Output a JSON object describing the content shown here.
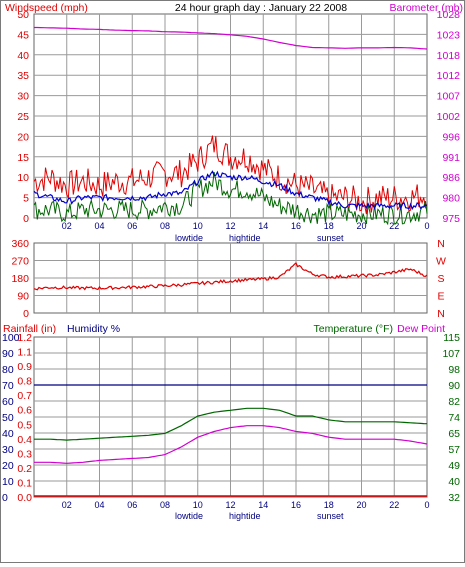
{
  "colors": {
    "wind": "#e00000",
    "gust": "#e00000",
    "wind_avg": "#0000cc",
    "wind_dir": "#e00000",
    "baro": "#d000d0",
    "rain": "#e00000",
    "humidity": "#000080",
    "temperature": "#006600",
    "dewpoint": "#d000d0",
    "grid": "#9a9a9a",
    "hour_tick_text": "#000080"
  },
  "chart_data": [
    {
      "type": "line",
      "title": "24 hour graph day : January 22 2008",
      "left_axis_label": "Windspeed (mph)",
      "right_axis_label": "Barometer (mb)",
      "left_ticks": [
        "50",
        "45",
        "40",
        "35",
        "30",
        "25",
        "20",
        "15",
        "10",
        "5",
        "0"
      ],
      "right_ticks": [
        "1028",
        "1023",
        "1018",
        "1012",
        "1007",
        "1002",
        "996",
        "991",
        "986",
        "980",
        "975"
      ],
      "ylim_left": [
        0,
        50
      ],
      "ylim_right": [
        975,
        1028
      ],
      "x_ticks": [
        "02",
        "04",
        "06",
        "08",
        "10",
        "12",
        "14",
        "16",
        "18",
        "20",
        "22",
        "0"
      ],
      "x_annotations": [
        "lowtide",
        "hightide",
        "sunset"
      ],
      "grid": true,
      "series": [
        {
          "name": "Barometer (mb)",
          "axis": "right",
          "x": [
            0,
            1,
            2,
            3,
            4,
            5,
            6,
            7,
            8,
            9,
            10,
            11,
            12,
            13,
            14,
            15,
            16,
            17,
            18,
            19,
            20,
            21,
            22,
            23,
            24
          ],
          "values": [
            1024.5,
            1024.4,
            1024.3,
            1024.1,
            1024.0,
            1023.8,
            1023.7,
            1023.6,
            1023.4,
            1023.3,
            1023.1,
            1022.9,
            1022.6,
            1022.2,
            1021.5,
            1020.6,
            1019.8,
            1019.3,
            1019.2,
            1019.1,
            1019.2,
            1019.2,
            1019.3,
            1019.2,
            1018.9
          ]
        },
        {
          "name": "Windspeed (mph)",
          "axis": "left",
          "style": "gust",
          "x": [
            0,
            1,
            2,
            3,
            4,
            5,
            6,
            7,
            8,
            9,
            10,
            11,
            12,
            13,
            14,
            15,
            16,
            17,
            18,
            19,
            20,
            21,
            22,
            23,
            24
          ],
          "values": [
            9,
            10,
            8,
            9,
            8,
            9,
            9,
            10,
            11,
            11,
            14,
            18,
            15,
            15,
            12,
            10,
            8,
            7,
            5,
            5,
            4,
            5,
            5,
            5,
            6
          ]
        },
        {
          "name": "Average (mph)",
          "axis": "left",
          "style": "avg",
          "x": [
            0,
            1,
            2,
            3,
            4,
            5,
            6,
            7,
            8,
            9,
            10,
            11,
            12,
            13,
            14,
            15,
            16,
            17,
            18,
            19,
            20,
            21,
            22,
            23,
            24
          ],
          "values": [
            6,
            5,
            4,
            5,
            5,
            5,
            5,
            5,
            6,
            6,
            9,
            11,
            10,
            10,
            9,
            8,
            6,
            5,
            4,
            3,
            3,
            3,
            3,
            3,
            3
          ]
        },
        {
          "name": "Low (mph)",
          "axis": "left",
          "style": "low",
          "x": [
            0,
            1,
            2,
            3,
            4,
            5,
            6,
            7,
            8,
            9,
            10,
            11,
            12,
            13,
            14,
            15,
            16,
            17,
            18,
            19,
            20,
            21,
            22,
            23,
            24
          ],
          "values": [
            2,
            2,
            1,
            2,
            2,
            2,
            2,
            2,
            3,
            3,
            7,
            9,
            7,
            7,
            5,
            3,
            2,
            1,
            1,
            1,
            1,
            1,
            1,
            1,
            2
          ]
        }
      ]
    },
    {
      "type": "scatter",
      "left_ticks": [
        "360",
        "270",
        "180",
        "90",
        "0"
      ],
      "right_ticks": [
        "N",
        "W",
        "S",
        "E",
        "N"
      ],
      "ylim": [
        0,
        360
      ],
      "grid": true,
      "series": [
        {
          "name": "Wind direction",
          "x": [
            0,
            1,
            2,
            3,
            4,
            5,
            6,
            7,
            8,
            9,
            10,
            11,
            12,
            13,
            14,
            15,
            16,
            17,
            18,
            19,
            20,
            21,
            22,
            23,
            24
          ],
          "values": [
            125,
            132,
            130,
            128,
            128,
            130,
            133,
            136,
            140,
            145,
            152,
            158,
            165,
            170,
            175,
            185,
            250,
            200,
            185,
            188,
            192,
            196,
            210,
            225,
            190
          ]
        }
      ]
    },
    {
      "type": "line",
      "left_axis_label": "Rainfall (in)",
      "left_axis_label_2": "Humidity %",
      "right_axis_label": "Temperature (°F)",
      "right_axis_label_2": "Dew Point",
      "rain_ticks": [
        "1.2",
        "1.1",
        "0.9",
        "0.8",
        "0.7",
        "0.6",
        "0.5",
        "0.4",
        "0.3",
        "0.2",
        "0.1",
        "0.0"
      ],
      "humidity_ticks": [
        "100",
        "90",
        "80",
        "70",
        "60",
        "50",
        "40",
        "30",
        "20",
        "10",
        "0"
      ],
      "right_ticks": [
        "115",
        "107",
        "98",
        "90",
        "82",
        "74",
        "65",
        "57",
        "49",
        "40",
        "32"
      ],
      "ylim_right": [
        32,
        115
      ],
      "x_ticks": [
        "02",
        "04",
        "06",
        "08",
        "10",
        "12",
        "14",
        "16",
        "18",
        "20",
        "22",
        "0"
      ],
      "x_annotations": [
        "lowtide",
        "hightide",
        "sunset"
      ],
      "grid": true,
      "series": [
        {
          "name": "Humidity %",
          "axis": "humidity",
          "x": [
            0,
            24
          ],
          "values": [
            70,
            70
          ]
        },
        {
          "name": "Rainfall (in)",
          "axis": "rain",
          "x": [
            0,
            24
          ],
          "values": [
            0,
            0
          ]
        },
        {
          "name": "Temperature (°F)",
          "axis": "right",
          "x": [
            0,
            1,
            2,
            3,
            4,
            5,
            6,
            7,
            8,
            9,
            10,
            11,
            12,
            13,
            14,
            15,
            16,
            17,
            18,
            19,
            20,
            21,
            22,
            23,
            24
          ],
          "values": [
            62,
            62,
            61.5,
            62,
            62.5,
            63,
            63.5,
            64,
            65,
            69,
            74,
            76,
            77,
            78,
            78,
            77,
            74,
            74,
            72,
            71,
            71,
            71,
            71,
            70.5,
            70
          ]
        },
        {
          "name": "Dew Point",
          "axis": "right",
          "x": [
            0,
            1,
            2,
            3,
            4,
            5,
            6,
            7,
            8,
            9,
            10,
            11,
            12,
            13,
            14,
            15,
            16,
            17,
            18,
            19,
            20,
            21,
            22,
            23,
            24
          ],
          "values": [
            50,
            50,
            49.5,
            50,
            51,
            51.5,
            52,
            52.5,
            54,
            58,
            63,
            66,
            68,
            69,
            69,
            68,
            66,
            65,
            63,
            62,
            62,
            62,
            62,
            61,
            59.5
          ]
        }
      ]
    }
  ]
}
